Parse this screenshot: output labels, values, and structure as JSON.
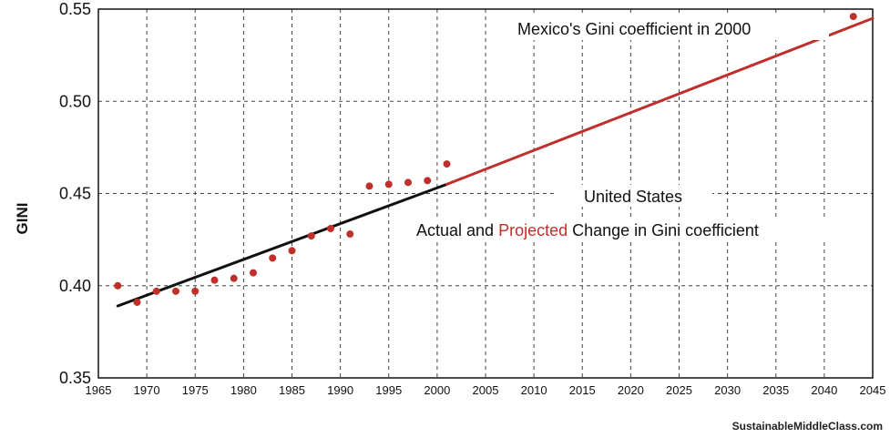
{
  "chart_data": {
    "type": "scatter",
    "ylabel": "GINI",
    "xlim": [
      1965,
      2045
    ],
    "ylim": [
      0.35,
      0.55
    ],
    "xticks": [
      1965,
      1970,
      1975,
      1980,
      1985,
      1990,
      1995,
      2000,
      2005,
      2010,
      2015,
      2020,
      2025,
      2030,
      2035,
      2040,
      2045
    ],
    "yticks": [
      "0.35",
      "0.40",
      "0.45",
      "0.50",
      "0.55"
    ],
    "grid": true,
    "series": [
      {
        "color": "#c0302b",
        "points": [
          [
            1967,
            0.4
          ],
          [
            1969,
            0.391
          ],
          [
            1971,
            0.397
          ],
          [
            1973,
            0.397
          ],
          [
            1975,
            0.397
          ],
          [
            1977,
            0.403
          ],
          [
            1979,
            0.404
          ],
          [
            1981,
            0.407
          ],
          [
            1983,
            0.415
          ],
          [
            1985,
            0.419
          ],
          [
            1987,
            0.427
          ],
          [
            1989,
            0.431
          ],
          [
            1991,
            0.428
          ],
          [
            1993,
            0.454
          ],
          [
            1995,
            0.455
          ],
          [
            1997,
            0.456
          ],
          [
            1999,
            0.457
          ],
          [
            2001,
            0.466
          ]
        ]
      },
      {
        "color": "#c0302b",
        "points": [
          [
            2043,
            0.546
          ]
        ]
      }
    ],
    "trend_actual": {
      "color": "#111111",
      "from": [
        1967,
        0.389
      ],
      "to": [
        2001,
        0.455
      ]
    },
    "trend_projected": {
      "color": "#c0302b",
      "from": [
        2001,
        0.455
      ],
      "to": [
        2045,
        0.545
      ]
    }
  },
  "annotations": {
    "mexico": "Mexico's  Gini coefficient in 2000",
    "title_line1": "United States",
    "title_line2_a": "Actual and ",
    "title_line2_b": "Projected",
    "title_line2_c": "  Change in Gini coefficient",
    "projected_color": "#c0302b"
  },
  "watermark": "SustainableMiddleClass.com"
}
